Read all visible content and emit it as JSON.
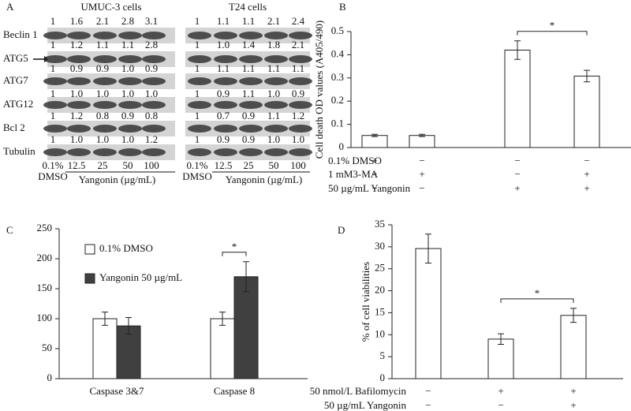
{
  "panel_a": {
    "label": "A",
    "row_labels": [
      "Beclin 1",
      "ATG5",
      "ATG7",
      "ATG12",
      "Bcl 2",
      "Tubulin"
    ],
    "blots": [
      {
        "title": "UMUC-3 cells",
        "rows": [
          [
            "1",
            "1.6",
            "2.1",
            "2.8",
            "3.1"
          ],
          [
            "1",
            "1.2",
            "1.1",
            "1.1",
            "2.8"
          ],
          [
            "1",
            "0.9",
            "0.9",
            "1.0",
            "0.9"
          ],
          [
            "1",
            "1.0",
            "1.0",
            "1.0",
            "1.0"
          ],
          [
            "1",
            "1.2",
            "0.8",
            "0.9",
            "0.8"
          ],
          [
            "1",
            "1.0",
            "1.0",
            "1.0",
            "1.2"
          ]
        ],
        "lanes": [
          "0.1%",
          "12.5",
          "25",
          "50",
          "100"
        ],
        "vehicle": "DMSO",
        "treatment": "Yangonin (µg/mL)"
      },
      {
        "title": "T24 cells",
        "rows": [
          [
            "1",
            "1.1",
            "1.1",
            "2.1",
            "2.4"
          ],
          [
            "1",
            "1.0",
            "1.4",
            "1.8",
            "2.1"
          ],
          [
            "1",
            "1.1",
            "1.1",
            "1.1",
            "1.1"
          ],
          [
            "1",
            "0.9",
            "1.1",
            "1.0",
            "0.9"
          ],
          [
            "1",
            "0.7",
            "0.9",
            "1.1",
            "1.2"
          ],
          [
            "1",
            "0.9",
            "0.9",
            "1.0",
            "1.0"
          ]
        ],
        "lanes": [
          "0.1%",
          "12.5",
          "25",
          "50",
          "100"
        ],
        "vehicle": "DMSO",
        "treatment": "Yangonin (µg/mL)"
      }
    ]
  },
  "chart_data": [
    {
      "type": "bar",
      "label": "B",
      "y_label": "Cell death OD values (A405/490)",
      "values": [
        0.052,
        0.052,
        0.42,
        0.308
      ],
      "errors": [
        0.005,
        0.005,
        0.04,
        0.025
      ],
      "color": "#ffffff",
      "ylim": [
        0,
        0.5
      ],
      "yticks": [
        0,
        0.1,
        0.2,
        0.3,
        0.4,
        0.5
      ],
      "conditions": [
        {
          "label": "0.1% DMSO",
          "signs": [
            "+",
            "−",
            "−",
            "−"
          ]
        },
        {
          "label": "1 mM3-MA",
          "signs": [
            "−",
            "+",
            "−",
            "+"
          ]
        },
        {
          "label": "50 µg/mL Yangonin",
          "signs": [
            "−",
            "−",
            "+",
            "+"
          ]
        }
      ],
      "significance": {
        "text": "*",
        "between": [
          2,
          3
        ]
      }
    },
    {
      "type": "grouped_bar",
      "label": "C",
      "categories": [
        "Caspase 3&7",
        "Caspase 8"
      ],
      "series": [
        {
          "name": "0.1% DMSO",
          "color": "#ffffff",
          "values": [
            100,
            100
          ],
          "errors": [
            11,
            11
          ]
        },
        {
          "name": "Yangonin 50 µg/mL",
          "color": "#404040",
          "values": [
            88,
            170
          ],
          "errors": [
            14,
            25
          ]
        }
      ],
      "ylim": [
        0,
        250
      ],
      "yticks": [
        0,
        50,
        100,
        150,
        200,
        250
      ],
      "significance": {
        "text": "*",
        "category": 1
      }
    },
    {
      "type": "bar",
      "label": "D",
      "y_label": "% of cell viabilities",
      "values": [
        29.6,
        9.0,
        14.4
      ],
      "errors": [
        3.3,
        1.2,
        1.6
      ],
      "color": "#ffffff",
      "ylim": [
        0,
        35
      ],
      "yticks": [
        0,
        5,
        10,
        15,
        20,
        25,
        30,
        35
      ],
      "conditions": [
        {
          "label": "50 nmol/L Bafilomycin",
          "signs": [
            "−",
            "+",
            "+"
          ]
        },
        {
          "label": "50 µg/mL Yangonin",
          "signs": [
            "−",
            "−",
            "+"
          ]
        }
      ],
      "significance": {
        "text": "*",
        "between": [
          1,
          2
        ]
      }
    }
  ]
}
